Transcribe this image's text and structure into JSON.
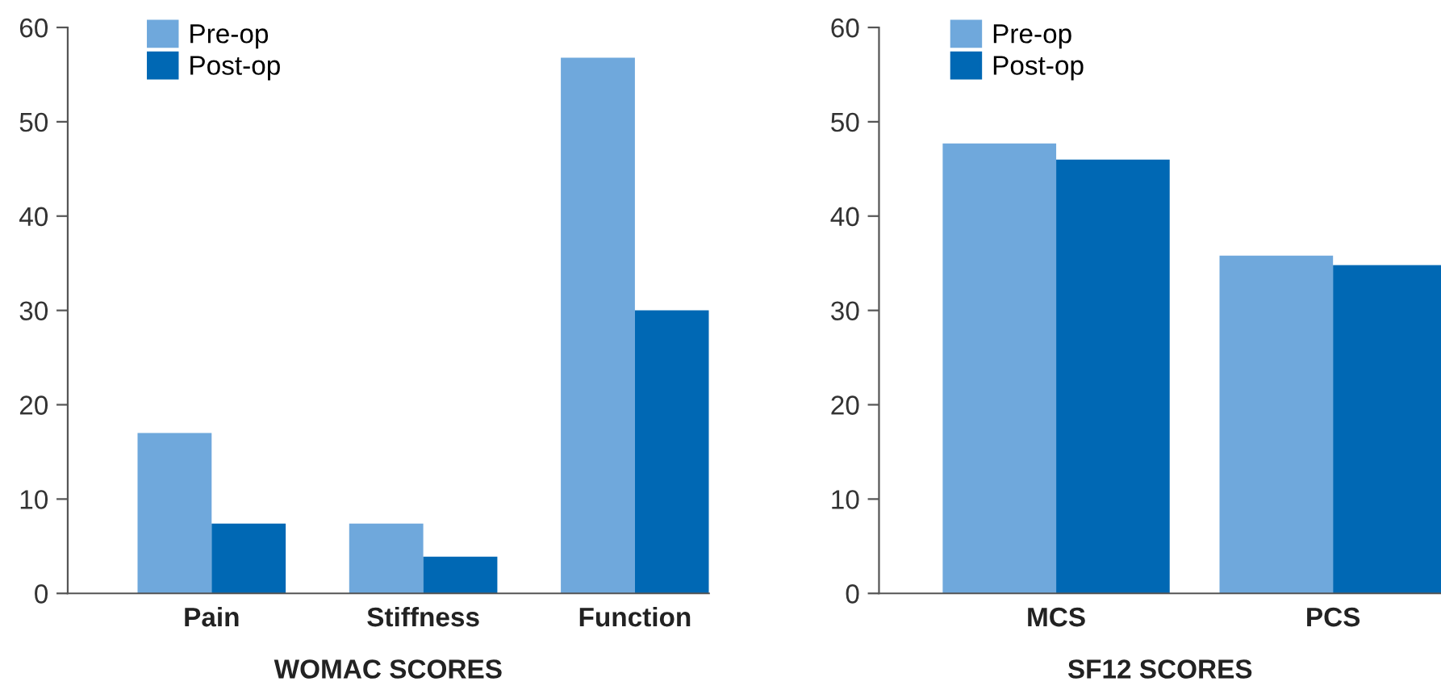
{
  "chart_data": [
    {
      "type": "bar",
      "xlabel": "WOMAC SCORES",
      "categories": [
        "Pain",
        "Stiffness",
        "Function"
      ],
      "series": [
        {
          "name": "Pre-op",
          "color": "#6fa8dc",
          "values": [
            17.0,
            7.4,
            56.8
          ]
        },
        {
          "name": "Post-op",
          "color": "#0068b4",
          "values": [
            7.4,
            3.9,
            30.0
          ]
        }
      ],
      "ylim": [
        0,
        60
      ],
      "yticks": [
        0,
        10,
        20,
        30,
        40,
        50,
        60
      ],
      "grid": false,
      "legend": "top left"
    },
    {
      "type": "bar",
      "xlabel": "SF12 SCORES",
      "categories": [
        "MCS",
        "PCS"
      ],
      "series": [
        {
          "name": "Pre-op",
          "color": "#6fa8dc",
          "values": [
            47.7,
            35.8
          ]
        },
        {
          "name": "Post-op",
          "color": "#0068b4",
          "values": [
            46.0,
            34.8
          ]
        }
      ],
      "ylim": [
        0,
        60
      ],
      "yticks": [
        0,
        10,
        20,
        30,
        40,
        50,
        60
      ],
      "grid": false,
      "legend": "top left"
    }
  ]
}
